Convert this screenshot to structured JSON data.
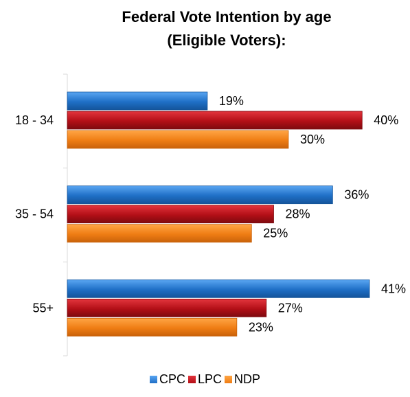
{
  "chart_data": {
    "type": "bar",
    "orientation": "horizontal",
    "title_line1": "Federal Vote Intention by age",
    "title_line2": "(Eligible Voters):",
    "categories": [
      "18 - 34",
      "35 - 54",
      "55+"
    ],
    "series": [
      {
        "name": "CPC",
        "values": [
          19,
          36,
          41
        ],
        "labels": [
          "19%",
          "36%",
          "41%"
        ],
        "color": "#2f7ed8"
      },
      {
        "name": "LPC",
        "values": [
          40,
          28,
          27
        ],
        "labels": [
          "40%",
          "28%",
          "27%"
        ],
        "color": "#c0141c"
      },
      {
        "name": "NDP",
        "values": [
          30,
          25,
          23
        ],
        "labels": [
          "30%",
          "25%",
          "23%"
        ],
        "color": "#f28a1c"
      }
    ],
    "xlim": [
      0,
      41
    ],
    "grid": false,
    "legend_position": "bottom"
  }
}
